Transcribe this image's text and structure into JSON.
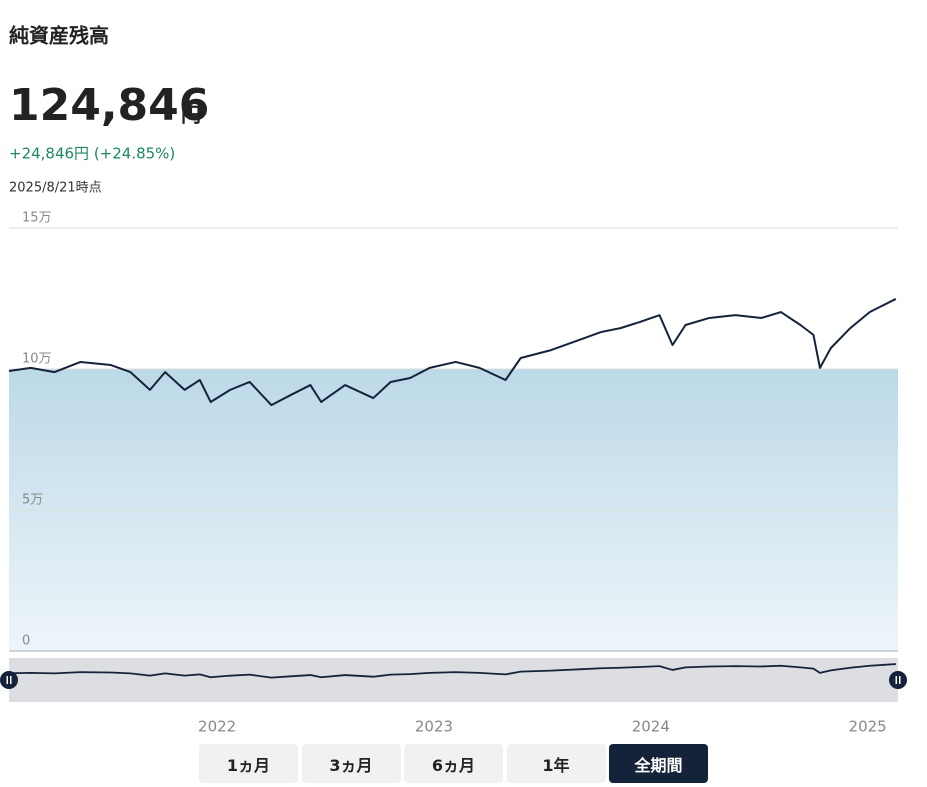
{
  "header": {
    "title": "純資産残高",
    "amount": "124,846",
    "unit": "円",
    "change": "+24,846円 (+24.85%)",
    "as_of": "2025/8/21時点"
  },
  "chart_data": {
    "type": "line",
    "x": [
      2021.04,
      2021.14,
      2021.25,
      2021.37,
      2021.51,
      2021.6,
      2021.69,
      2021.76,
      2021.85,
      2021.92,
      2021.97,
      2022.06,
      2022.15,
      2022.25,
      2022.34,
      2022.43,
      2022.48,
      2022.59,
      2022.72,
      2022.8,
      2022.89,
      2022.98,
      2023.1,
      2023.21,
      2023.33,
      2023.4,
      2023.54,
      2023.67,
      2023.77,
      2023.86,
      2023.95,
      2024.04,
      2024.1,
      2024.16,
      2024.27,
      2024.39,
      2024.51,
      2024.6,
      2024.69,
      2024.75,
      2024.78,
      2024.83,
      2024.92,
      2025.01,
      2025.13
    ],
    "series": [
      {
        "color": "#15233a",
        "values": [
          99300,
          100400,
          98900,
          102500,
          101400,
          98900,
          92600,
          98900,
          92600,
          96100,
          88300,
          92600,
          95400,
          87200,
          90800,
          94300,
          88300,
          94300,
          89700,
          95400,
          96800,
          100400,
          102500,
          100400,
          96100,
          103900,
          106700,
          110300,
          113100,
          114500,
          116700,
          119100,
          108500,
          115600,
          118100,
          119100,
          118100,
          120200,
          115600,
          112100,
          100400,
          107400,
          114500,
          120200,
          124846
        ]
      }
    ],
    "baseline": 100000,
    "area_color": "#bcd9e8",
    "xlim": [
      2021.04,
      2025.14
    ],
    "xticks": [
      2022,
      2023,
      2024,
      2025
    ],
    "ylim": [
      0,
      150000
    ],
    "yticks": [
      {
        "value": 0,
        "label": "0"
      },
      {
        "value": 50000,
        "label": "5万"
      },
      {
        "value": 100000,
        "label": "10万"
      },
      {
        "value": 150000,
        "label": "15万"
      }
    ],
    "grid": true
  },
  "range_buttons": {
    "labels": [
      "1ヵ月",
      "3ヵ月",
      "6ヵ月",
      "1年",
      "全期間"
    ],
    "active": 4
  }
}
